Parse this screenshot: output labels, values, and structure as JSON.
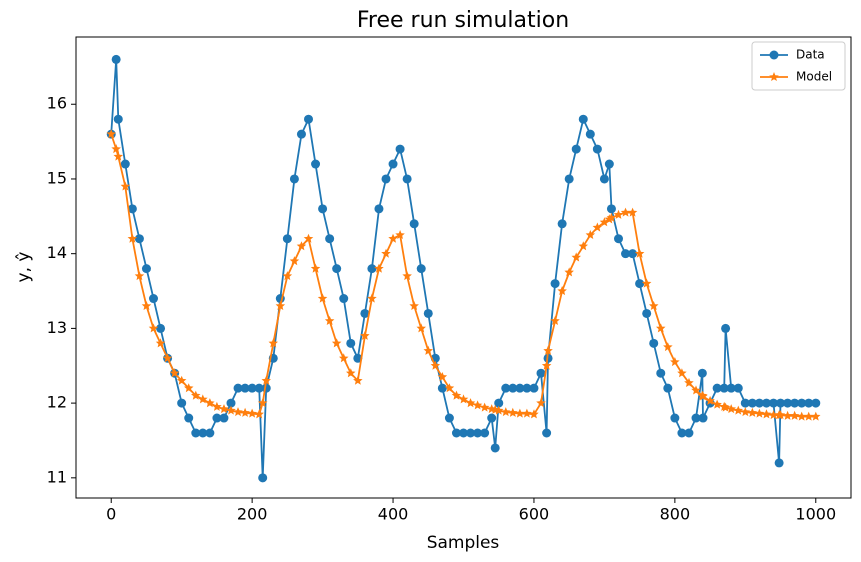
{
  "chart_data": {
    "type": "line",
    "title": "Free run simulation",
    "x_label": "Samples",
    "y_label": "y, ŷ",
    "x": [
      0,
      7,
      10,
      20,
      30,
      40,
      50,
      60,
      70,
      80,
      90,
      100,
      110,
      120,
      130,
      140,
      150,
      160,
      170,
      180,
      190,
      200,
      210,
      215,
      220,
      230,
      240,
      250,
      260,
      270,
      280,
      290,
      300,
      310,
      320,
      330,
      340,
      350,
      360,
      370,
      380,
      390,
      400,
      410,
      420,
      430,
      440,
      450,
      460,
      470,
      480,
      490,
      500,
      510,
      520,
      530,
      540,
      545,
      550,
      560,
      570,
      580,
      590,
      600,
      610,
      618,
      620,
      630,
      640,
      650,
      660,
      670,
      680,
      690,
      700,
      707,
      710,
      720,
      730,
      740,
      750,
      760,
      770,
      780,
      790,
      800,
      810,
      820,
      830,
      839,
      840,
      850,
      860,
      870,
      872,
      880,
      890,
      900,
      910,
      920,
      930,
      940,
      948,
      950,
      960,
      970,
      980,
      990,
      1000
    ],
    "series": [
      {
        "name": "Data",
        "color": "#1f77b4",
        "marker": "circle",
        "values": [
          15.6,
          16.6,
          15.8,
          15.2,
          14.6,
          14.2,
          13.8,
          13.4,
          13.0,
          12.6,
          12.4,
          12.0,
          11.8,
          11.6,
          11.6,
          11.6,
          11.8,
          11.8,
          12.0,
          12.2,
          12.2,
          12.2,
          12.2,
          11.0,
          12.2,
          12.6,
          13.4,
          14.2,
          15.0,
          15.6,
          15.8,
          15.2,
          14.6,
          14.2,
          13.8,
          13.4,
          12.8,
          12.6,
          13.2,
          13.8,
          14.6,
          15.0,
          15.2,
          15.4,
          15.0,
          14.4,
          13.8,
          13.2,
          12.6,
          12.2,
          11.8,
          11.6,
          11.6,
          11.6,
          11.6,
          11.6,
          11.8,
          11.4,
          12.0,
          12.2,
          12.2,
          12.2,
          12.2,
          12.2,
          12.4,
          11.6,
          12.6,
          13.6,
          14.4,
          15.0,
          15.4,
          15.8,
          15.6,
          15.4,
          15.0,
          15.2,
          14.6,
          14.2,
          14.0,
          14.0,
          13.6,
          13.2,
          12.8,
          12.4,
          12.2,
          11.8,
          11.6,
          11.6,
          11.8,
          12.4,
          11.8,
          12.0,
          12.2,
          12.2,
          13.0,
          12.2,
          12.2,
          12.0,
          12.0,
          12.0,
          12.0,
          12.0,
          11.2,
          12.0,
          12.0,
          12.0,
          12.0,
          12.0,
          12.0
        ]
      },
      {
        "name": "Model",
        "color": "#ff7f0e",
        "marker": "star",
        "values": [
          15.6,
          15.4,
          15.3,
          14.9,
          14.2,
          13.7,
          13.3,
          13.0,
          12.8,
          12.6,
          12.4,
          12.3,
          12.2,
          12.1,
          12.05,
          12.0,
          11.95,
          11.92,
          11.9,
          11.88,
          11.87,
          11.86,
          11.85,
          12.0,
          12.3,
          12.8,
          13.3,
          13.7,
          13.9,
          14.1,
          14.2,
          13.8,
          13.4,
          13.1,
          12.8,
          12.6,
          12.4,
          12.3,
          12.9,
          13.4,
          13.8,
          14.0,
          14.2,
          14.25,
          13.7,
          13.3,
          13.0,
          12.7,
          12.5,
          12.35,
          12.2,
          12.1,
          12.05,
          12.0,
          11.97,
          11.94,
          11.92,
          11.91,
          11.9,
          11.88,
          11.87,
          11.86,
          11.86,
          11.85,
          12.0,
          12.5,
          12.7,
          13.1,
          13.5,
          13.75,
          13.95,
          14.1,
          14.25,
          14.35,
          14.42,
          14.46,
          14.48,
          14.52,
          14.55,
          14.55,
          14.0,
          13.6,
          13.3,
          13.0,
          12.75,
          12.55,
          12.4,
          12.27,
          12.17,
          12.1,
          12.09,
          12.03,
          11.98,
          11.95,
          11.94,
          11.92,
          11.9,
          11.88,
          11.87,
          11.86,
          11.85,
          11.84,
          11.84,
          11.84,
          11.83,
          11.83,
          11.82,
          11.82,
          11.82
        ]
      }
    ],
    "xlim": [
      -50,
      1050
    ],
    "ylim": [
      10.73,
      16.9
    ],
    "xticks": [
      0,
      200,
      400,
      600,
      800,
      1000
    ],
    "yticks": [
      11,
      12,
      13,
      14,
      15,
      16
    ],
    "legend": "upper right"
  }
}
